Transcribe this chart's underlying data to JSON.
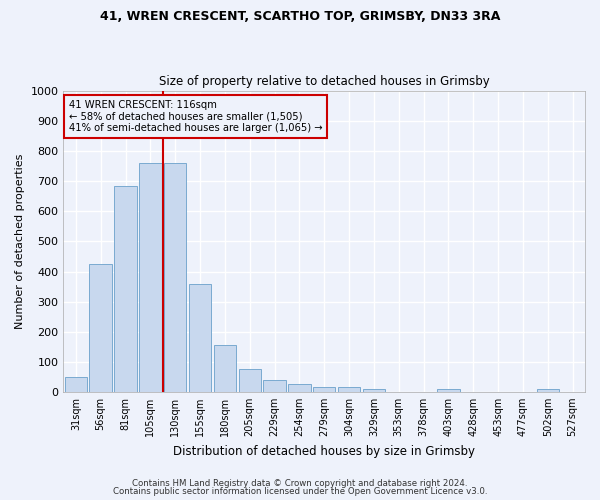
{
  "title1": "41, WREN CRESCENT, SCARTHO TOP, GRIMSBY, DN33 3RA",
  "title2": "Size of property relative to detached houses in Grimsby",
  "xlabel": "Distribution of detached houses by size in Grimsby",
  "ylabel": "Number of detached properties",
  "categories": [
    "31sqm",
    "56sqm",
    "81sqm",
    "105sqm",
    "130sqm",
    "155sqm",
    "180sqm",
    "205sqm",
    "229sqm",
    "254sqm",
    "279sqm",
    "304sqm",
    "329sqm",
    "353sqm",
    "378sqm",
    "403sqm",
    "428sqm",
    "453sqm",
    "477sqm",
    "502sqm",
    "527sqm"
  ],
  "values": [
    50,
    425,
    685,
    760,
    760,
    360,
    155,
    75,
    40,
    25,
    17,
    17,
    10,
    0,
    0,
    9,
    0,
    0,
    0,
    10,
    0
  ],
  "bar_color": "#c8d8ee",
  "bar_edge_color": "#7aaad0",
  "annotation_line1": "41 WREN CRESCENT: 116sqm",
  "annotation_line2": "← 58% of detached houses are smaller (1,505)",
  "annotation_line3": "41% of semi-detached houses are larger (1,065) →",
  "vline_color": "#cc0000",
  "box_edge_color": "#cc0000",
  "ylim": [
    0,
    1000
  ],
  "yticks": [
    0,
    100,
    200,
    300,
    400,
    500,
    600,
    700,
    800,
    900,
    1000
  ],
  "footer1": "Contains HM Land Registry data © Crown copyright and database right 2024.",
  "footer2": "Contains public sector information licensed under the Open Government Licence v3.0.",
  "bg_color": "#eef2fb",
  "grid_color": "#ffffff"
}
